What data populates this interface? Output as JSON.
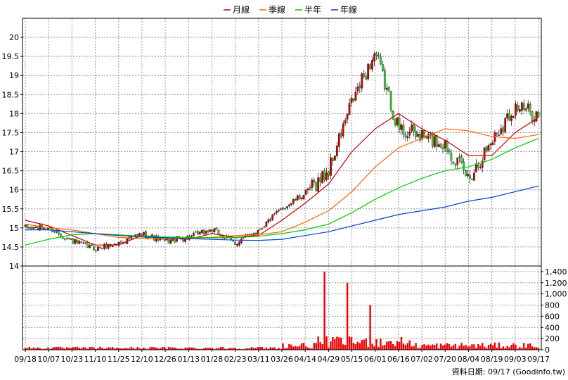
{
  "chart_data": {
    "type": "candlestick",
    "legend": {
      "placement": "top-center",
      "entries": [
        {
          "name": "月線",
          "color": "#cc0000"
        },
        {
          "name": "季線",
          "color": "#ff6600"
        },
        {
          "name": "半年",
          "color": "#00cc00"
        },
        {
          "name": "年線",
          "color": "#0044cc"
        }
      ]
    },
    "price_axis": {
      "min": 14,
      "max": 20.5,
      "ticks": [
        14,
        14.5,
        15,
        15.5,
        16,
        16.5,
        17,
        17.5,
        18,
        18.5,
        19,
        19.5,
        20
      ],
      "tick_labels": [
        "14",
        "14.5",
        "15",
        "15.5",
        "16",
        "16.5",
        "17",
        "17.5",
        "18",
        "18.5",
        "19",
        "19.5",
        "20"
      ]
    },
    "volume_axis": {
      "min": 0,
      "max": 1500,
      "ticks": [
        0,
        200,
        400,
        600,
        800,
        1000,
        1200,
        1400
      ],
      "tick_labels": [
        "0",
        "200",
        "400",
        "600",
        "800",
        "1,000",
        "1,200",
        "1,400"
      ]
    },
    "x_tick_labels": [
      "09/18",
      "10/07",
      "10/23",
      "11/10",
      "11/25",
      "12/10",
      "12/26",
      "01/13",
      "01/28",
      "02/23",
      "03/11",
      "03/26",
      "04/14",
      "04/29",
      "05/15",
      "06/01",
      "06/16",
      "07/02",
      "07/20",
      "08/04",
      "08/19",
      "09/03",
      "09/17"
    ],
    "grid": true,
    "colors": {
      "up": "#cc0000",
      "down": "#33cc33",
      "volume": "#ee0000",
      "grid": "#999999",
      "frame": "#000000"
    },
    "price_anchors": [
      {
        "label": "09/18",
        "close": 15.0
      },
      {
        "label": "10/07",
        "close": 15.0
      },
      {
        "label": "10/23",
        "close": 14.65
      },
      {
        "label": "11/10",
        "close": 14.45
      },
      {
        "label": "11/25",
        "close": 14.6
      },
      {
        "label": "12/10",
        "close": 14.85
      },
      {
        "label": "12/26",
        "close": 14.65
      },
      {
        "label": "01/13",
        "close": 14.75
      },
      {
        "label": "01/28",
        "close": 14.95
      },
      {
        "label": "02/23",
        "close": 14.6
      },
      {
        "label": "03/11",
        "close": 14.95
      },
      {
        "label": "03/26",
        "close": 15.5
      },
      {
        "label": "04/14",
        "close": 15.9
      },
      {
        "label": "04/29",
        "close": 16.5
      },
      {
        "label": "05/15",
        "close": 18.3
      },
      {
        "label": "06/01",
        "close": 19.6
      },
      {
        "label": "06/16",
        "close": 17.6
      },
      {
        "label": "07/02",
        "close": 17.4
      },
      {
        "label": "07/20",
        "close": 17.2
      },
      {
        "label": "08/04",
        "close": 16.3
      },
      {
        "label": "08/19",
        "close": 17.3
      },
      {
        "label": "09/03",
        "close": 18.2
      },
      {
        "label": "09/17",
        "close": 17.95
      }
    ],
    "moving_averages": {
      "月線": [
        15.2,
        15.05,
        14.8,
        14.55,
        14.55,
        14.8,
        14.75,
        14.7,
        14.85,
        14.75,
        14.8,
        15.2,
        15.65,
        16.15,
        17.0,
        17.6,
        18.0,
        17.6,
        17.3,
        16.9,
        16.9,
        17.5,
        17.9
      ],
      "季線": [
        15.1,
        15.0,
        14.95,
        14.85,
        14.75,
        14.72,
        14.72,
        14.72,
        14.75,
        14.8,
        14.82,
        14.9,
        15.15,
        15.45,
        15.95,
        16.6,
        17.1,
        17.35,
        17.6,
        17.55,
        17.4,
        17.35,
        17.45
      ],
      "半年": [
        14.55,
        14.7,
        14.82,
        14.85,
        14.82,
        14.78,
        14.76,
        14.75,
        14.74,
        14.74,
        14.78,
        14.85,
        14.95,
        15.1,
        15.4,
        15.75,
        16.05,
        16.3,
        16.5,
        16.6,
        16.8,
        17.1,
        17.35
      ],
      "年線": [
        14.95,
        14.95,
        14.9,
        14.85,
        14.8,
        14.76,
        14.74,
        14.72,
        14.7,
        14.68,
        14.67,
        14.7,
        14.8,
        14.9,
        15.05,
        15.2,
        15.35,
        15.45,
        15.55,
        15.7,
        15.8,
        15.95,
        16.1
      ]
    },
    "volume_peaks": [
      {
        "label": "04/29",
        "value": 1400
      },
      {
        "label": "05/15",
        "value": 1200
      },
      {
        "label": "06/01",
        "value": 800
      }
    ]
  },
  "credit": "資料日期: 09/17  (Goodinfo.tw)"
}
